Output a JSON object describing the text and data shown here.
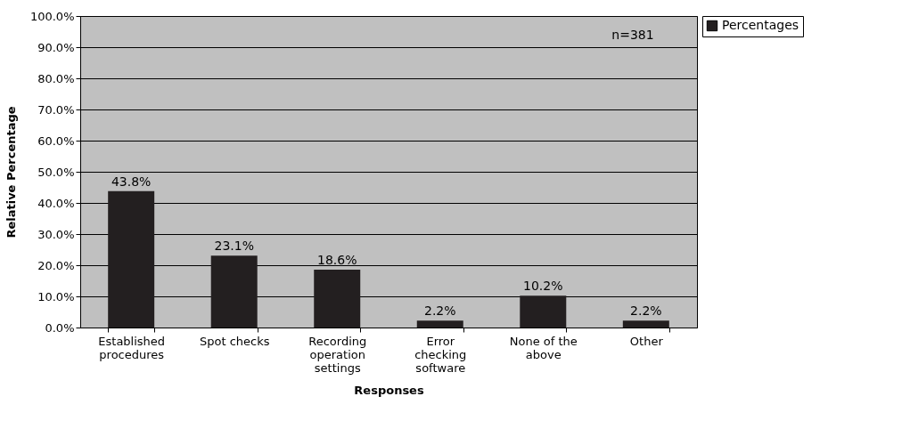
{
  "chart_data": {
    "type": "bar",
    "xlabel": "Responses",
    "ylabel": "Relative Percentage",
    "categories": [
      "Established procedures",
      "Spot checks",
      "Recording operation settings",
      "Error checking software",
      "None of the above",
      "Other"
    ],
    "series": [
      {
        "name": "Percentages",
        "color": "#231f20",
        "values": [
          43.8,
          23.1,
          18.6,
          2.2,
          10.2,
          2.2
        ],
        "value_labels": [
          "43.8%",
          "23.1%",
          "18.6%",
          "2.2%",
          "10.2%",
          "2.2%"
        ]
      }
    ],
    "ylim": [
      0,
      100
    ],
    "yticks": [
      {
        "value": 0,
        "label": "0.0%"
      },
      {
        "value": 10,
        "label": "10.0%"
      },
      {
        "value": 20,
        "label": "20.0%"
      },
      {
        "value": 30,
        "label": "30.0%"
      },
      {
        "value": 40,
        "label": "40.0%"
      },
      {
        "value": 50,
        "label": "50.0%"
      },
      {
        "value": 60,
        "label": "60.0%"
      },
      {
        "value": 70,
        "label": "70.0%"
      },
      {
        "value": 80,
        "label": "80.0%"
      },
      {
        "value": 90,
        "label": "90.0%"
      },
      {
        "value": 100,
        "label": "100.0%"
      }
    ],
    "grid": "y",
    "legend": "right",
    "annotations": [
      "n=381"
    ]
  }
}
